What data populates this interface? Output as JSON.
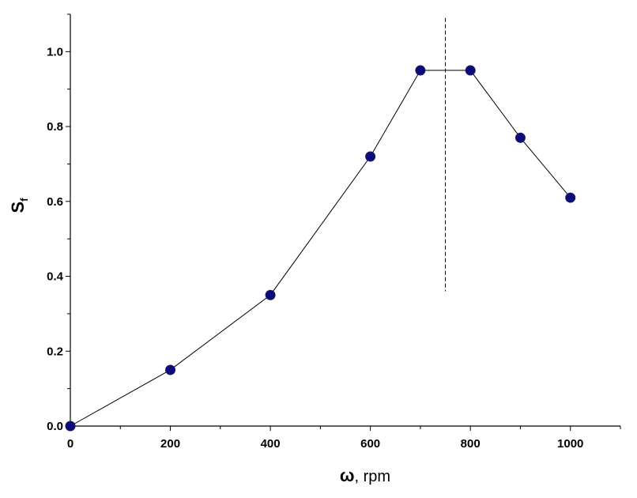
{
  "chart_data": {
    "type": "line",
    "x": [
      0,
      200,
      400,
      600,
      700,
      800,
      900,
      1000
    ],
    "series": [
      {
        "values": [
          0.0,
          0.15,
          0.35,
          0.72,
          0.95,
          0.95,
          0.77,
          0.61
        ]
      }
    ],
    "xlabel": {
      "symbol": "ω",
      "rest": ", rpm"
    },
    "ylabel": {
      "symbol": "S",
      "subscript": "f"
    },
    "xlim": [
      0,
      1100
    ],
    "ylim": [
      0,
      1.1
    ],
    "xticks": [
      0,
      200,
      400,
      600,
      800,
      1000
    ],
    "xtick_labels": [
      "0",
      "200",
      "400",
      "600",
      "800",
      "1000"
    ],
    "yticks": [
      0.0,
      0.2,
      0.4,
      0.6,
      0.8,
      1.0
    ],
    "ytick_labels": [
      "0.0",
      "0.2",
      "0.4",
      "0.6",
      "0.8",
      "1.0"
    ],
    "vline": {
      "x": 750,
      "y_from": 0.36,
      "y_to": 1.09
    },
    "grid": false,
    "marker_color": "#0d0d7a",
    "line_color": "#000000"
  }
}
